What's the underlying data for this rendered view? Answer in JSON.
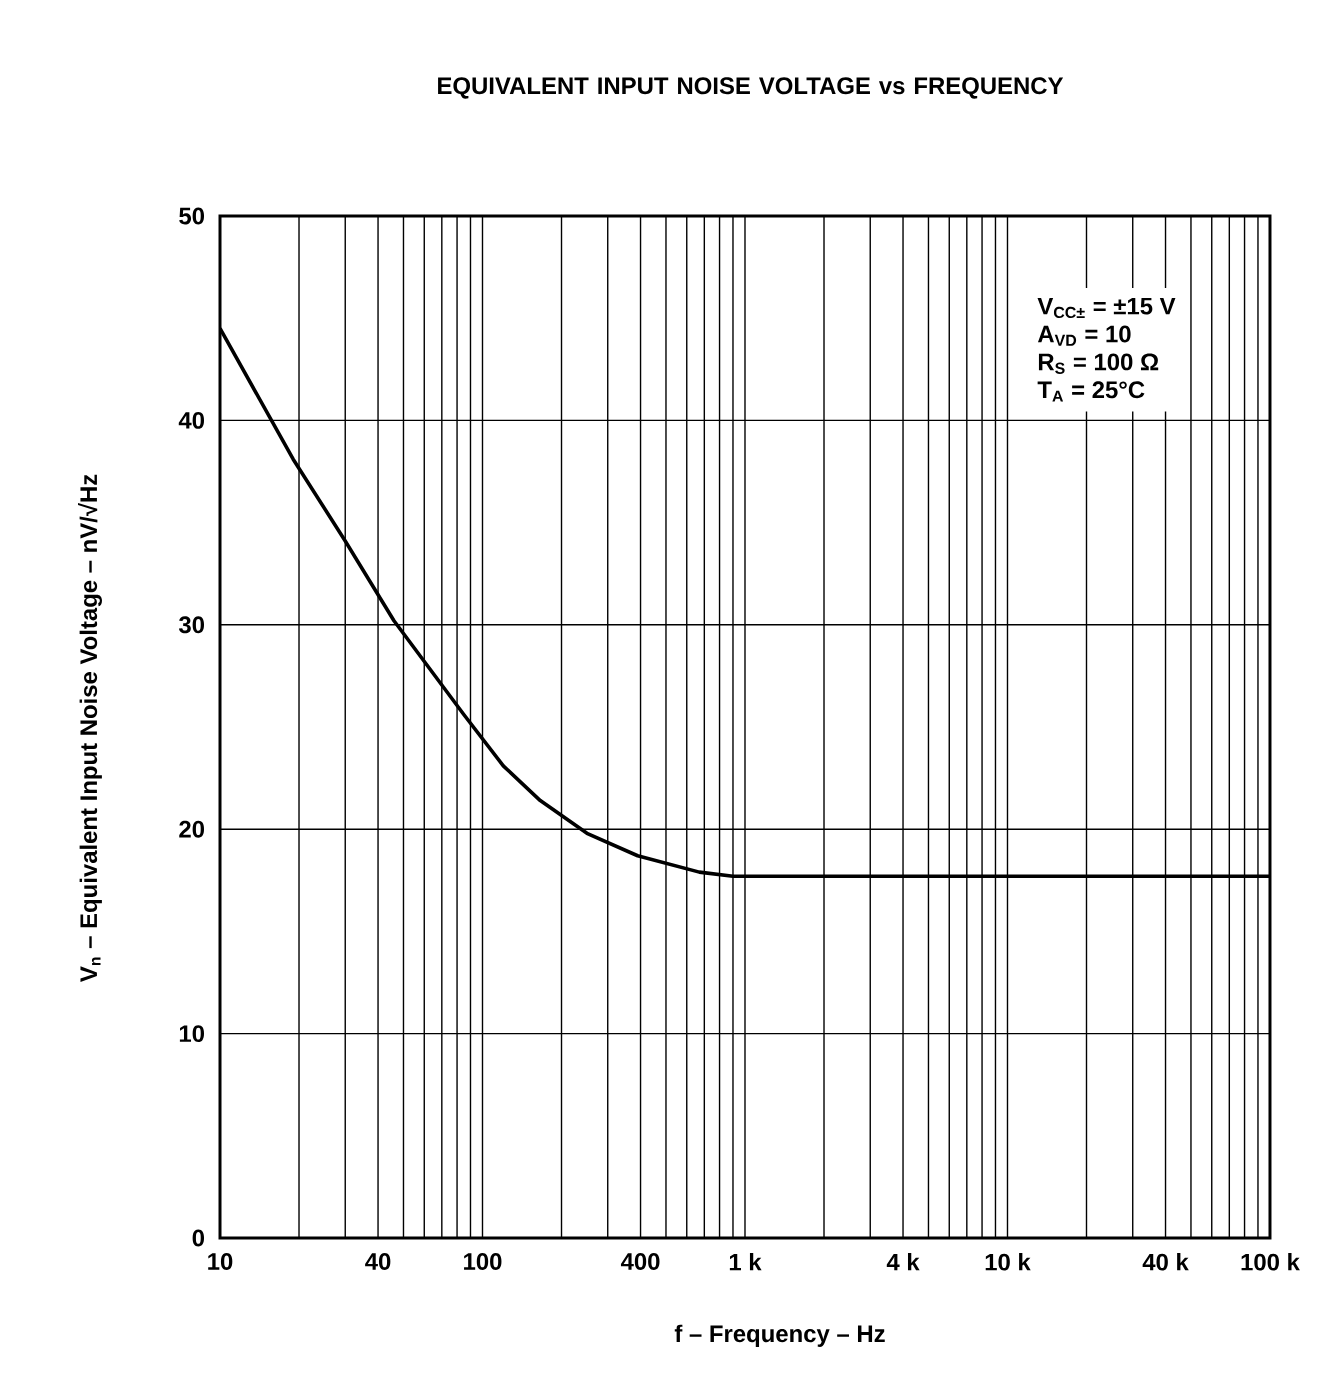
{
  "chart_data": {
    "type": "line",
    "title": "EQUIVALENT INPUT NOISE VOLTAGE vs FREQUENCY",
    "xlabel": "f – Frequency – Hz",
    "ylabel": "V$_{n}$ – Equivalent Input Noise Voltage – nV/√Hz",
    "log": "x",
    "grid": true,
    "marker": "none",
    "line_style": "solid",
    "xlim": [
      10,
      100000
    ],
    "ylim": [
      0,
      50
    ],
    "xticks": [
      {
        "value": 10,
        "label": "10"
      },
      {
        "value": 20,
        "label": null
      },
      {
        "value": 30,
        "label": null
      },
      {
        "value": 40,
        "label": "40"
      },
      {
        "value": 50,
        "label": null
      },
      {
        "value": 60,
        "label": null
      },
      {
        "value": 70,
        "label": null
      },
      {
        "value": 80,
        "label": null
      },
      {
        "value": 90,
        "label": null
      },
      {
        "value": 100,
        "label": "100"
      },
      {
        "value": 200,
        "label": null
      },
      {
        "value": 300,
        "label": null
      },
      {
        "value": 400,
        "label": "400"
      },
      {
        "value": 500,
        "label": null
      },
      {
        "value": 600,
        "label": null
      },
      {
        "value": 700,
        "label": null
      },
      {
        "value": 800,
        "label": null
      },
      {
        "value": 900,
        "label": null
      },
      {
        "value": 1000,
        "label": "1 k"
      },
      {
        "value": 2000,
        "label": null
      },
      {
        "value": 3000,
        "label": null
      },
      {
        "value": 4000,
        "label": "4 k"
      },
      {
        "value": 5000,
        "label": null
      },
      {
        "value": 6000,
        "label": null
      },
      {
        "value": 7000,
        "label": null
      },
      {
        "value": 8000,
        "label": null
      },
      {
        "value": 9000,
        "label": null
      },
      {
        "value": 10000,
        "label": "10 k"
      },
      {
        "value": 20000,
        "label": null
      },
      {
        "value": 30000,
        "label": null
      },
      {
        "value": 40000,
        "label": "40 k"
      },
      {
        "value": 50000,
        "label": null
      },
      {
        "value": 60000,
        "label": null
      },
      {
        "value": 70000,
        "label": null
      },
      {
        "value": 80000,
        "label": null
      },
      {
        "value": 90000,
        "label": null
      },
      {
        "value": 100000,
        "label": "100 k"
      }
    ],
    "yticks": [
      0,
      10,
      20,
      30,
      40,
      50
    ],
    "annotations": [
      "V$_{CC±}$ = ±15 V",
      "A$_{VD}$ = 10",
      "R$_{S}$ = 100 Ω",
      "T$_{A}$ = 25°C"
    ],
    "series": [
      {
        "color": "#000000",
        "x": [
          10,
          19,
          30,
          46,
          85,
          120,
          166,
          250,
          390,
          670,
          900,
          100000
        ],
        "values": [
          44.5,
          38.1,
          34.1,
          30.2,
          25.6,
          23.1,
          21.4,
          19.8,
          18.7,
          17.9,
          17.7,
          17.7
        ]
      }
    ]
  }
}
